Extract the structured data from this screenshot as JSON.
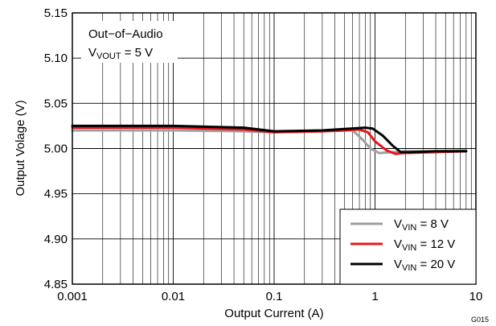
{
  "chart_data": {
    "type": "line",
    "title": "",
    "xlabel": "Output Current (A)",
    "ylabel": "Output Volage (V)",
    "x_scale": "log",
    "xlim": [
      0.001,
      10
    ],
    "ylim": [
      4.85,
      5.15
    ],
    "x_ticks": [
      {
        "value": 0.001,
        "label": "0.001"
      },
      {
        "value": 0.01,
        "label": "0.01"
      },
      {
        "value": 0.1,
        "label": "0.1"
      },
      {
        "value": 1,
        "label": "1"
      },
      {
        "value": 10,
        "label": "10"
      }
    ],
    "y_ticks": [
      {
        "value": 4.85,
        "label": "4.85"
      },
      {
        "value": 4.9,
        "label": "4.90"
      },
      {
        "value": 4.95,
        "label": "4.95"
      },
      {
        "value": 5.0,
        "label": "5.00"
      },
      {
        "value": 5.05,
        "label": "5.05"
      },
      {
        "value": 5.1,
        "label": "5.10"
      },
      {
        "value": 5.15,
        "label": "5.15"
      }
    ],
    "grid": true,
    "legend_position": "bottom-right",
    "annotation": {
      "line1": "Out−of−Audio",
      "line2_main": "V",
      "line2_sub": "VOUT",
      "line2_rest": " = 5 V"
    },
    "figure_code": "G015",
    "series": [
      {
        "name": "VIN = 8 V",
        "legend_main": "V",
        "legend_sub": "VIN",
        "legend_rest": " = 8 V",
        "color": "#a0a0a0",
        "x": [
          0.001,
          0.01,
          0.05,
          0.1,
          0.3,
          0.6,
          0.75,
          0.9,
          1.1,
          1.5,
          2,
          4,
          8
        ],
        "y": [
          5.02,
          5.02,
          5.019,
          5.018,
          5.019,
          5.02,
          5.01,
          5.0,
          4.995,
          4.996,
          4.997,
          4.997,
          4.998
        ]
      },
      {
        "name": "VIN = 12 V",
        "legend_main": "V",
        "legend_sub": "VIN",
        "legend_rest": " = 12 V",
        "color": "#e8141c",
        "x": [
          0.001,
          0.01,
          0.05,
          0.1,
          0.3,
          0.7,
          0.85,
          1.0,
          1.3,
          1.6,
          1.9,
          4,
          8
        ],
        "y": [
          5.023,
          5.023,
          5.021,
          5.018,
          5.019,
          5.021,
          5.018,
          5.008,
          4.998,
          4.994,
          4.995,
          4.996,
          4.997
        ]
      },
      {
        "name": "VIN = 20 V",
        "legend_main": "V",
        "legend_sub": "VIN",
        "legend_rest": " = 20 V",
        "color": "#000000",
        "x": [
          0.001,
          0.01,
          0.05,
          0.1,
          0.3,
          0.8,
          0.95,
          1.2,
          1.5,
          1.8,
          2.2,
          4,
          8
        ],
        "y": [
          5.025,
          5.025,
          5.023,
          5.019,
          5.02,
          5.023,
          5.022,
          5.014,
          5.003,
          4.996,
          4.996,
          4.997,
          4.997
        ]
      }
    ]
  }
}
